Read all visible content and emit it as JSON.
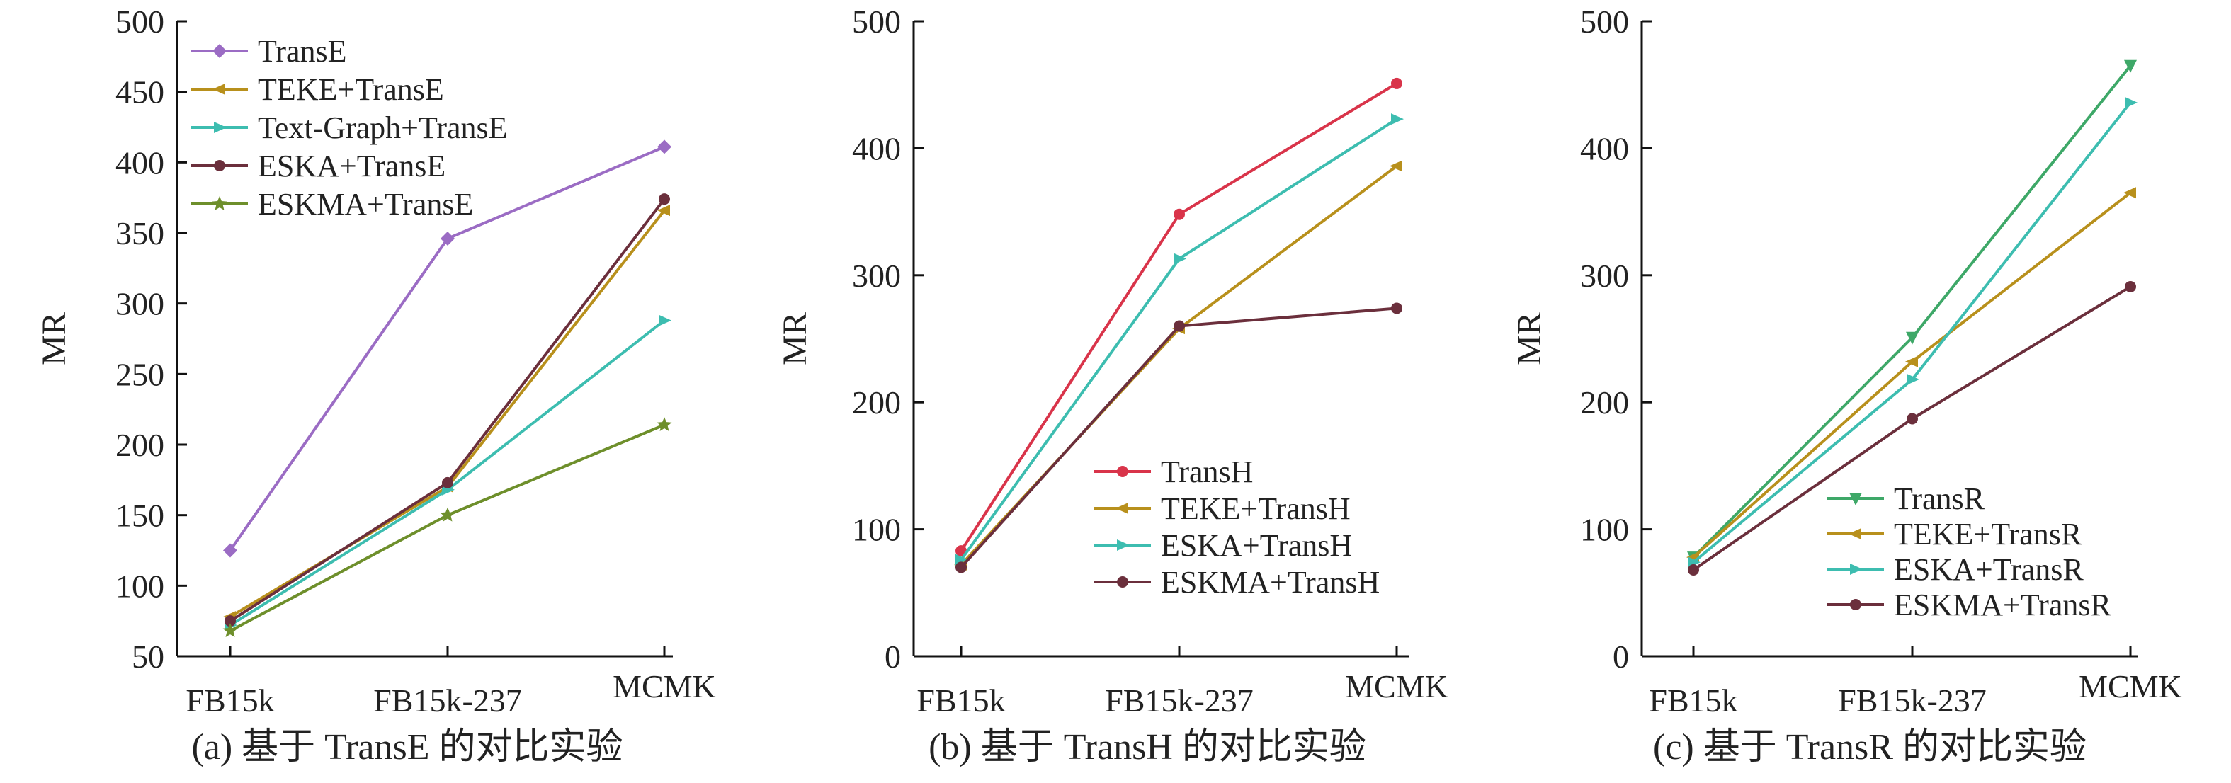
{
  "chart_data": [
    {
      "type": "line",
      "caption": "(a) 基于 TransE 的对比实验",
      "ylabel": "MR",
      "xlabel": "",
      "categories": [
        "FB15k",
        "FB15k-237",
        "MCMK"
      ],
      "ylim": [
        50,
        500
      ],
      "yticks": [
        50,
        100,
        150,
        200,
        250,
        300,
        350,
        400,
        450,
        500
      ],
      "legend_position": "top-left",
      "series": [
        {
          "name": "TransE",
          "values": [
            125,
            346,
            411
          ],
          "color": "#9b6cc4",
          "marker": "diamond"
        },
        {
          "name": "TEKE+TransE",
          "values": [
            78,
            170,
            366
          ],
          "color": "#b8901c",
          "marker": "triangle-left"
        },
        {
          "name": "Text-Graph+TransE",
          "values": [
            72,
            168,
            288
          ],
          "color": "#3dbdb0",
          "marker": "triangle-right"
        },
        {
          "name": "ESKA+TransE",
          "values": [
            75,
            173,
            374
          ],
          "color": "#6b2f3c",
          "marker": "circle"
        },
        {
          "name": "ESKMA+TransE",
          "values": [
            68,
            150,
            214
          ],
          "color": "#6e8f2b",
          "marker": "star"
        }
      ]
    },
    {
      "type": "line",
      "caption": "(b) 基于 TransH 的对比实验",
      "ylabel": "MR",
      "xlabel": "",
      "categories": [
        "FB15k",
        "FB15k-237",
        "MCMK"
      ],
      "ylim": [
        0,
        500
      ],
      "yticks": [
        0,
        100,
        200,
        300,
        400,
        500
      ],
      "legend_position": "bottom-right",
      "series": [
        {
          "name": "TransH",
          "values": [
            83,
            348,
            451
          ],
          "color": "#d9344a",
          "marker": "circle"
        },
        {
          "name": "TEKE+TransH",
          "values": [
            72,
            258,
            386
          ],
          "color": "#b8901c",
          "marker": "triangle-left"
        },
        {
          "name": "ESKA+TransH",
          "values": [
            76,
            313,
            423
          ],
          "color": "#3dbdb0",
          "marker": "triangle-right"
        },
        {
          "name": "ESKMA+TransH",
          "values": [
            70,
            260,
            274
          ],
          "color": "#6b2f3c",
          "marker": "circle"
        }
      ]
    },
    {
      "type": "line",
      "caption": "(c) 基于 TransR 的对比实验",
      "ylabel": "MR",
      "xlabel": "",
      "categories": [
        "FB15k",
        "FB15k-237",
        "MCMK"
      ],
      "ylim": [
        0,
        500
      ],
      "yticks": [
        0,
        100,
        200,
        300,
        400,
        500
      ],
      "legend_position": "bottom-right",
      "series": [
        {
          "name": "TransR",
          "values": [
            78,
            251,
            465
          ],
          "color": "#3ea868",
          "marker": "triangle-down"
        },
        {
          "name": "TEKE+TransR",
          "values": [
            78,
            232,
            365
          ],
          "color": "#b8901c",
          "marker": "triangle-left"
        },
        {
          "name": "ESKA+TransR",
          "values": [
            74,
            218,
            436
          ],
          "color": "#3dbdb0",
          "marker": "triangle-right"
        },
        {
          "name": "ESKMA+TransR",
          "values": [
            68,
            187,
            291
          ],
          "color": "#6b2f3c",
          "marker": "circle"
        }
      ]
    }
  ]
}
